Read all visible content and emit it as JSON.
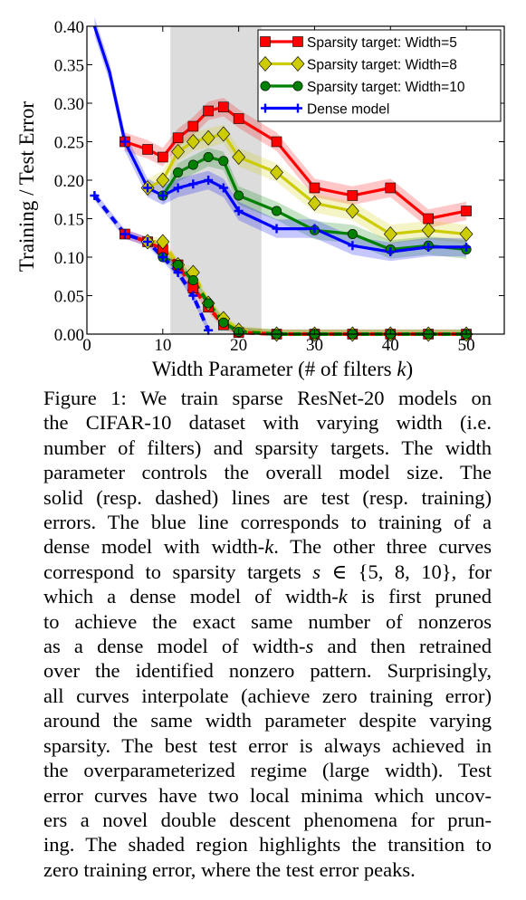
{
  "chart_data": {
    "type": "line",
    "ylabel": "Training / Test Error",
    "xlabel": "Width Parameter (# of filters k)",
    "xlim": [
      0,
      55
    ],
    "ylim": [
      0.0,
      0.4
    ],
    "x_ticks": [
      "0",
      "10",
      "20",
      "30",
      "40",
      "50"
    ],
    "y_ticks": [
      "0.00",
      "0.05",
      "0.10",
      "0.15",
      "0.20",
      "0.25",
      "0.30",
      "0.35",
      "0.40"
    ],
    "shaded_region": [
      11,
      23
    ],
    "legend_position": "top-right",
    "colors": {
      "width5": "#ff0000",
      "width8": "#cccc00",
      "width10": "#008000",
      "dense": "#0000ff"
    },
    "series": [
      {
        "name": "Sparsity target: Width=5",
        "color": "#ff0000",
        "marker": "square",
        "test": {
          "x": [
            5,
            8,
            10,
            12,
            14,
            16,
            18,
            20,
            25,
            30,
            35,
            40,
            45,
            50
          ],
          "y": [
            0.25,
            0.24,
            0.23,
            0.255,
            0.27,
            0.29,
            0.295,
            0.28,
            0.25,
            0.19,
            0.18,
            0.19,
            0.15,
            0.16
          ]
        },
        "train": {
          "x": [
            5,
            8,
            10,
            12,
            14,
            16,
            18,
            20,
            25,
            30,
            35,
            40,
            45,
            50
          ],
          "y": [
            0.13,
            0.12,
            0.11,
            0.09,
            0.06,
            0.035,
            0.012,
            0.002,
            0,
            0,
            0,
            0,
            0,
            0
          ]
        }
      },
      {
        "name": "Sparsity target: Width=8",
        "color": "#cccc00",
        "marker": "diamond",
        "test": {
          "x": [
            8,
            10,
            12,
            14,
            16,
            18,
            20,
            25,
            30,
            35,
            40,
            45,
            50
          ],
          "y": [
            0.19,
            0.2,
            0.237,
            0.25,
            0.255,
            0.26,
            0.23,
            0.21,
            0.17,
            0.16,
            0.13,
            0.135,
            0.13
          ]
        },
        "train": {
          "x": [
            8,
            10,
            12,
            14,
            16,
            18,
            20,
            25,
            30,
            35,
            40,
            45,
            50
          ],
          "y": [
            0.12,
            0.12,
            0.09,
            0.08,
            0.04,
            0.02,
            0.005,
            0,
            0,
            0,
            0,
            0,
            0
          ]
        }
      },
      {
        "name": "Sparsity target: Width=10",
        "color": "#008000",
        "marker": "circle",
        "test": {
          "x": [
            10,
            12,
            14,
            16,
            18,
            20,
            25,
            30,
            35,
            40,
            45,
            50
          ],
          "y": [
            0.18,
            0.21,
            0.22,
            0.23,
            0.225,
            0.18,
            0.16,
            0.135,
            0.13,
            0.11,
            0.115,
            0.11
          ]
        },
        "train": {
          "x": [
            10,
            12,
            14,
            16,
            18,
            20,
            25,
            30,
            35,
            40,
            45,
            50
          ],
          "y": [
            0.1,
            0.09,
            0.07,
            0.04,
            0.015,
            0.003,
            0,
            0,
            0,
            0,
            0,
            0
          ]
        }
      },
      {
        "name": "Dense model",
        "color": "#0000ff",
        "marker": "plus",
        "test": {
          "x": [
            1,
            3,
            5,
            8,
            10,
            12,
            14,
            16,
            18,
            20,
            25,
            30,
            35,
            40,
            45,
            50
          ],
          "y": [
            0.4,
            0.34,
            0.25,
            0.19,
            0.18,
            0.19,
            0.195,
            0.2,
            0.19,
            0.16,
            0.137,
            0.137,
            0.115,
            0.107,
            0.113,
            0.113
          ]
        },
        "train": {
          "x": [
            1,
            5,
            8,
            10,
            12,
            14,
            16
          ],
          "y": [
            0.18,
            0.13,
            0.12,
            0.1,
            0.08,
            0.05,
            0.005
          ]
        }
      }
    ]
  },
  "figure_label": "Figure 1:",
  "caption_lines": [
    "Figure 1: We train sparse ResNet-20 models on",
    "the CIFAR-10 dataset with varying width (i.e.",
    "number of filters) and sparsity targets. The width",
    "parameter controls the overall model size. The",
    "solid (resp. dashed) lines are test (resp. training)",
    "errors. The blue line corresponds to training of a",
    "dense model with width-k. The other three curves",
    "correspond to sparsity targets s ∈ {5, 8, 10}, for",
    "which a dense model of width-k is first pruned",
    "to achieve the exact same number of nonzeros",
    "as a dense model of width-s and then retrained",
    "over the identified nonzero pattern. Surprisingly,",
    "all curves interpolate (achieve zero training error)",
    "around the same width parameter despite varying",
    "sparsity. The best test error is always achieved in",
    "the overparameterized regime (large width). Test",
    "error curves have two local minima which uncov-",
    "ers a novel double descent phenomena for prun-",
    "ing. The shaded region highlights the transition to",
    "zero training error, where the test error peaks."
  ]
}
